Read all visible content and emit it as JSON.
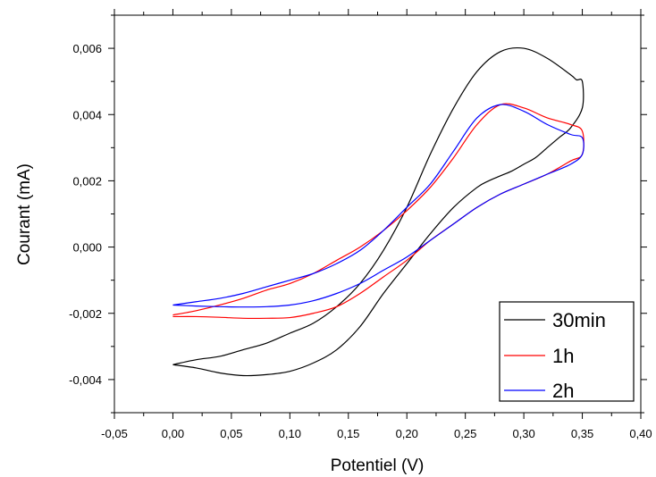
{
  "chart_data": {
    "type": "line",
    "xlabel": "Potentiel (V)",
    "ylabel": "Courant (mA)",
    "xlim": [
      -0.05,
      0.4
    ],
    "ylim": [
      -0.005,
      0.007
    ],
    "x_ticks": [
      -0.05,
      0.0,
      0.05,
      0.1,
      0.15,
      0.2,
      0.25,
      0.3,
      0.35,
      0.4
    ],
    "x_tick_labels": [
      "-0,05",
      "0,00",
      "0,05",
      "0,10",
      "0,15",
      "0,20",
      "0,25",
      "0,30",
      "0,35",
      "0,40"
    ],
    "y_ticks": [
      -0.004,
      -0.002,
      0.0,
      0.002,
      0.004,
      0.006
    ],
    "y_tick_labels": [
      "-0,004",
      "-0,002",
      "0,000",
      "0,002",
      "0,004",
      "0,006"
    ],
    "grid": false,
    "legend_position": "bottom-right",
    "series": [
      {
        "name": "30min",
        "color": "#000000",
        "x": [
          0.0,
          0.02,
          0.04,
          0.06,
          0.08,
          0.1,
          0.12,
          0.14,
          0.16,
          0.18,
          0.2,
          0.22,
          0.24,
          0.26,
          0.27,
          0.28,
          0.29,
          0.3,
          0.31,
          0.32,
          0.33,
          0.34,
          0.35,
          0.35,
          0.345,
          0.34,
          0.32,
          0.3,
          0.28,
          0.26,
          0.24,
          0.22,
          0.2,
          0.18,
          0.16,
          0.14,
          0.12,
          0.1,
          0.08,
          0.06,
          0.04,
          0.02,
          0.0
        ],
        "y": [
          -0.00355,
          -0.00365,
          -0.0038,
          -0.00388,
          -0.00385,
          -0.00375,
          -0.0035,
          -0.0031,
          -0.0024,
          -0.0014,
          -0.0005,
          0.0004,
          0.0012,
          0.0018,
          0.002,
          0.00215,
          0.0023,
          0.0025,
          0.0027,
          0.003,
          0.0033,
          0.0036,
          0.0042,
          0.005,
          0.00505,
          0.0052,
          0.0057,
          0.006,
          0.0059,
          0.0053,
          0.0042,
          0.0028,
          0.0012,
          -0.0001,
          -0.0011,
          -0.0018,
          -0.0023,
          -0.0026,
          -0.0029,
          -0.0031,
          -0.0033,
          -0.0034,
          -0.00355
        ]
      },
      {
        "name": "1h",
        "color": "#ff0000",
        "x": [
          0.0,
          0.02,
          0.04,
          0.06,
          0.08,
          0.1,
          0.12,
          0.14,
          0.16,
          0.18,
          0.2,
          0.22,
          0.24,
          0.26,
          0.28,
          0.3,
          0.32,
          0.34,
          0.35,
          0.35,
          0.34,
          0.32,
          0.3,
          0.28,
          0.26,
          0.24,
          0.22,
          0.2,
          0.18,
          0.16,
          0.14,
          0.12,
          0.1,
          0.08,
          0.06,
          0.04,
          0.02,
          0.0
        ],
        "y": [
          -0.0021,
          -0.0021,
          -0.00212,
          -0.00215,
          -0.00215,
          -0.00213,
          -0.002,
          -0.0018,
          -0.0014,
          -0.0009,
          -0.0004,
          0.0002,
          0.0007,
          0.0012,
          0.0016,
          0.0019,
          0.0022,
          0.0026,
          0.0028,
          0.0035,
          0.0037,
          0.0039,
          0.0042,
          0.0043,
          0.0037,
          0.0027,
          0.0018,
          0.0011,
          0.0005,
          0.0,
          -0.0004,
          -0.0008,
          -0.0011,
          -0.0013,
          -0.00155,
          -0.00175,
          -0.00192,
          -0.00205
        ]
      },
      {
        "name": "2h",
        "color": "#0000ff",
        "x": [
          0.0,
          0.02,
          0.04,
          0.06,
          0.08,
          0.1,
          0.12,
          0.14,
          0.16,
          0.18,
          0.2,
          0.22,
          0.24,
          0.26,
          0.28,
          0.3,
          0.32,
          0.34,
          0.35,
          0.35,
          0.34,
          0.32,
          0.3,
          0.28,
          0.26,
          0.24,
          0.22,
          0.2,
          0.18,
          0.16,
          0.14,
          0.12,
          0.1,
          0.08,
          0.06,
          0.04,
          0.02,
          0.0
        ],
        "y": [
          -0.00175,
          -0.00178,
          -0.0018,
          -0.00181,
          -0.0018,
          -0.00175,
          -0.00162,
          -0.0014,
          -0.0011,
          -0.0007,
          -0.0003,
          0.0002,
          0.0007,
          0.0012,
          0.0016,
          0.0019,
          0.0022,
          0.0025,
          0.0028,
          0.0033,
          0.0034,
          0.0037,
          0.0041,
          0.0043,
          0.0039,
          0.0029,
          0.0019,
          0.0012,
          0.0005,
          -0.0001,
          -0.0005,
          -0.0008,
          -0.001,
          -0.0012,
          -0.0014,
          -0.00155,
          -0.00165,
          -0.00175
        ]
      }
    ]
  }
}
